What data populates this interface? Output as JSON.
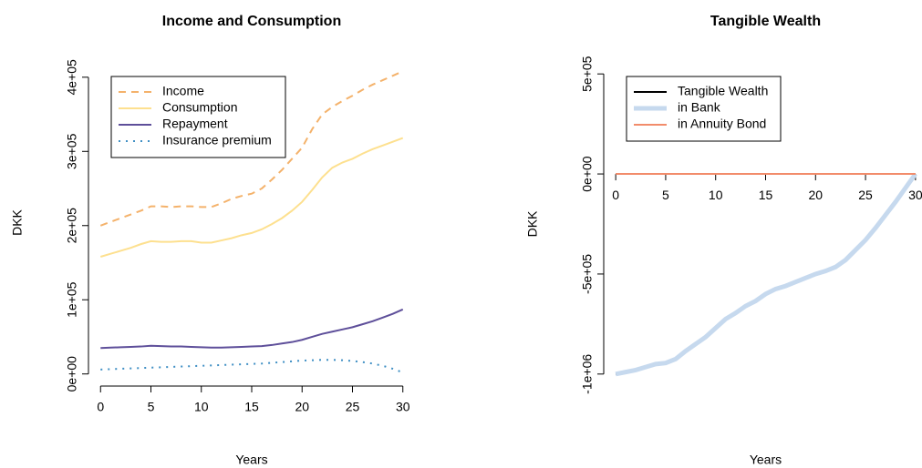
{
  "chart_data": [
    {
      "type": "line",
      "title": "Income and Consumption",
      "x_label": "Years",
      "y_label": "DKK",
      "x": [
        0,
        1,
        2,
        3,
        4,
        5,
        6,
        7,
        8,
        9,
        10,
        11,
        12,
        13,
        14,
        15,
        16,
        17,
        18,
        19,
        20,
        21,
        22,
        23,
        24,
        25,
        26,
        27,
        28,
        29,
        30
      ],
      "series": [
        {
          "name": "Income",
          "color": "#f4b26b",
          "dash": "dashed",
          "width": 2,
          "values": [
            200000,
            205000,
            210000,
            215000,
            220000,
            226000,
            226000,
            225000,
            226000,
            226000,
            225000,
            225000,
            230000,
            236000,
            240000,
            243000,
            250000,
            262000,
            275000,
            290000,
            305000,
            330000,
            350000,
            360000,
            368000,
            375000,
            383000,
            390000,
            396000,
            402000,
            408000
          ]
        },
        {
          "name": "Consumption",
          "color": "#fde08f",
          "dash": "solid",
          "width": 2,
          "values": [
            158000,
            162000,
            166000,
            170000,
            175000,
            179000,
            178000,
            178000,
            179000,
            179000,
            177000,
            177000,
            180000,
            183000,
            187000,
            190000,
            195000,
            202000,
            210000,
            220000,
            232000,
            248000,
            265000,
            278000,
            285000,
            290000,
            297000,
            303000,
            308000,
            313000,
            318000
          ]
        },
        {
          "name": "Repayment",
          "color": "#5e4f9a",
          "dash": "solid",
          "width": 2,
          "values": [
            35000,
            35500,
            36000,
            36500,
            37000,
            38000,
            37500,
            37000,
            37000,
            36500,
            36000,
            35500,
            35500,
            36000,
            36500,
            37000,
            37500,
            39000,
            41000,
            43000,
            46000,
            50000,
            54000,
            57000,
            60000,
            63000,
            67000,
            71000,
            76000,
            81000,
            87000
          ]
        },
        {
          "name": "Insurance premium",
          "color": "#3f8fc4",
          "dash": "dotted",
          "width": 2,
          "values": [
            6000,
            6500,
            7000,
            7500,
            8000,
            8500,
            9000,
            9500,
            10000,
            10500,
            11000,
            11500,
            12000,
            12500,
            13000,
            13500,
            14000,
            15000,
            16000,
            17000,
            18000,
            18500,
            19000,
            19000,
            18500,
            17500,
            16000,
            14000,
            11000,
            7000,
            2000
          ]
        }
      ],
      "xlim": [
        -1.2,
        31.2
      ],
      "xticks": [
        0,
        5,
        10,
        15,
        20,
        25,
        30
      ],
      "ylim": [
        -16320,
        424320
      ],
      "yticks": [
        {
          "value": 0,
          "label": "0e+00"
        },
        {
          "value": 100000,
          "label": "1e+05"
        },
        {
          "value": 200000,
          "label": "2e+05"
        },
        {
          "value": 300000,
          "label": "3e+05"
        },
        {
          "value": 400000,
          "label": "4e+05"
        }
      ],
      "x_axis_position": "bottom",
      "legend": "top-left"
    },
    {
      "type": "line",
      "title": "Tangible Wealth",
      "x_label": "Years",
      "y_label": "DKK",
      "x": [
        0,
        1,
        2,
        3,
        4,
        5,
        6,
        7,
        8,
        9,
        10,
        11,
        12,
        13,
        14,
        15,
        16,
        17,
        18,
        19,
        20,
        21,
        22,
        23,
        24,
        25,
        26,
        27,
        28,
        29,
        30
      ],
      "series": [
        {
          "name": "Tangible Wealth",
          "color": "#000000",
          "dash": "solid",
          "width": 2,
          "values": [
            -1000000,
            -990000,
            -980000,
            -965000,
            -950000,
            -945000,
            -925000,
            -885000,
            -850000,
            -815000,
            -770000,
            -725000,
            -695000,
            -660000,
            -635000,
            -600000,
            -575000,
            -560000,
            -540000,
            -520000,
            -500000,
            -485000,
            -465000,
            -430000,
            -380000,
            -330000,
            -270000,
            -205000,
            -140000,
            -70000,
            0
          ]
        },
        {
          "name": "in Bank",
          "color": "#c6d9ee",
          "dash": "solid",
          "width": 5,
          "values": [
            -1000000,
            -990000,
            -980000,
            -965000,
            -950000,
            -945000,
            -925000,
            -885000,
            -850000,
            -815000,
            -770000,
            -725000,
            -695000,
            -660000,
            -635000,
            -600000,
            -575000,
            -560000,
            -540000,
            -520000,
            -500000,
            -485000,
            -465000,
            -430000,
            -380000,
            -330000,
            -270000,
            -205000,
            -140000,
            -70000,
            0
          ]
        },
        {
          "name": "in Annuity Bond",
          "color": "#f28c6b",
          "dash": "solid",
          "width": 2,
          "values": [
            0,
            0,
            0,
            0,
            0,
            0,
            0,
            0,
            0,
            0,
            0,
            0,
            0,
            0,
            0,
            0,
            0,
            0,
            0,
            0,
            0,
            0,
            0,
            0,
            0,
            0,
            0,
            0,
            0,
            0,
            0
          ]
        }
      ],
      "xlim": [
        -1.2,
        31.2
      ],
      "xticks": [
        0,
        5,
        10,
        15,
        20,
        25,
        30
      ],
      "ylim": [
        -1060000,
        560000
      ],
      "yticks": [
        {
          "value": -1000000,
          "label": "-1e+06"
        },
        {
          "value": -500000,
          "label": "-5e+05"
        },
        {
          "value": 0,
          "label": "0e+00"
        },
        {
          "value": 500000,
          "label": "5e+05"
        }
      ],
      "x_axis_position": "zero",
      "legend": "top-left"
    }
  ]
}
